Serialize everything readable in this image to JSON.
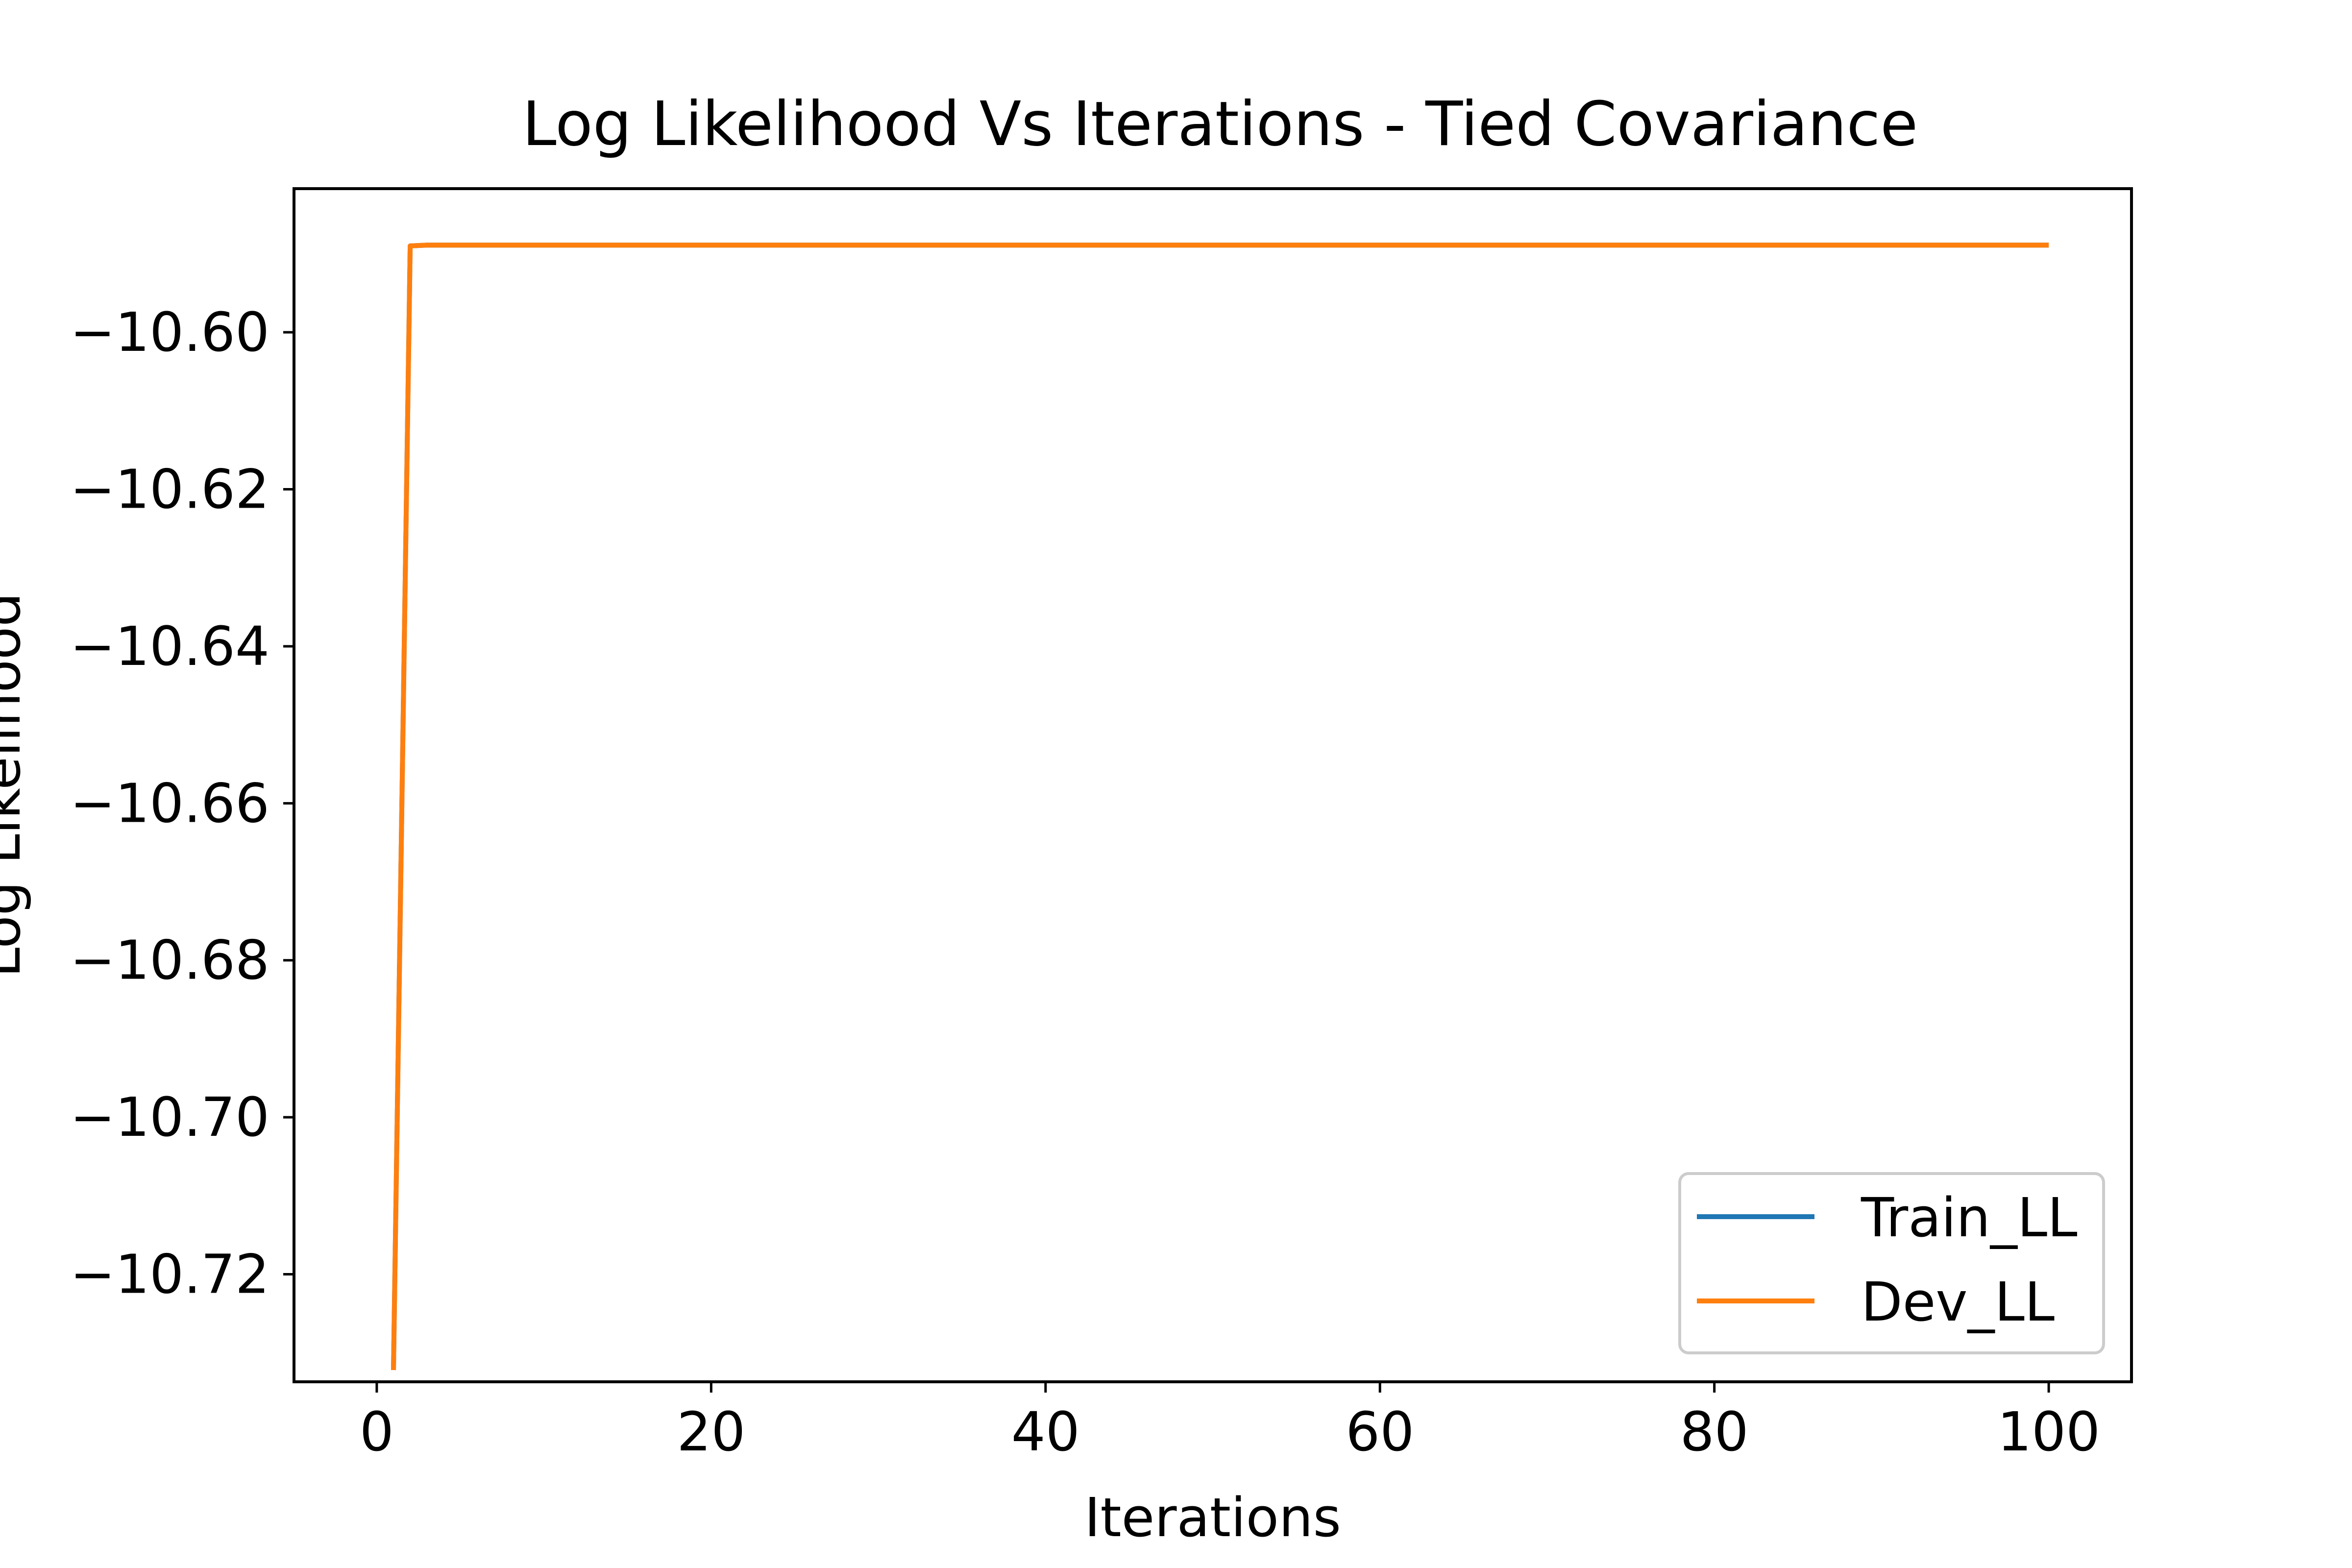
{
  "chart_data": {
    "type": "line",
    "title": "Log Likelihood Vs Iterations - Tied Covariance",
    "xlabel": "Iterations",
    "ylabel": "Log Likelihood",
    "xlim": [
      -4.95,
      104.95
    ],
    "ylim": [
      -10.7337,
      -10.5817
    ],
    "xticks": [
      0,
      20,
      40,
      60,
      80,
      100
    ],
    "xtick_labels": [
      "0",
      "20",
      "40",
      "60",
      "80",
      "100"
    ],
    "yticks": [
      -10.6,
      -10.62,
      -10.64,
      -10.66,
      -10.68,
      -10.7,
      -10.72
    ],
    "ytick_labels": [
      "−10.60",
      "−10.62",
      "−10.64",
      "−10.66",
      "−10.68",
      "−10.70",
      "−10.72"
    ],
    "grid": false,
    "legend_position": "lower right",
    "series": [
      {
        "name": "Train_LL",
        "color": "#1f77b4",
        "x": [
          1,
          2,
          3,
          4,
          5,
          10,
          20,
          30,
          40,
          50,
          60,
          70,
          80,
          90,
          100
        ],
        "y": [
          -10.7322,
          -10.589,
          -10.5889,
          -10.5889,
          -10.5889,
          -10.5889,
          -10.5889,
          -10.5889,
          -10.5889,
          -10.5889,
          -10.5889,
          -10.5889,
          -10.5889,
          -10.5889,
          -10.5889
        ]
      },
      {
        "name": "Dev_LL",
        "color": "#ff7f0e",
        "x": [
          1,
          2,
          3,
          4,
          5,
          10,
          20,
          30,
          40,
          50,
          60,
          70,
          80,
          90,
          100
        ],
        "y": [
          -10.7322,
          -10.589,
          -10.5889,
          -10.5889,
          -10.5889,
          -10.5889,
          -10.5889,
          -10.5889,
          -10.5889,
          -10.5889,
          -10.5889,
          -10.5889,
          -10.5889,
          -10.5889,
          -10.5889
        ]
      }
    ]
  }
}
